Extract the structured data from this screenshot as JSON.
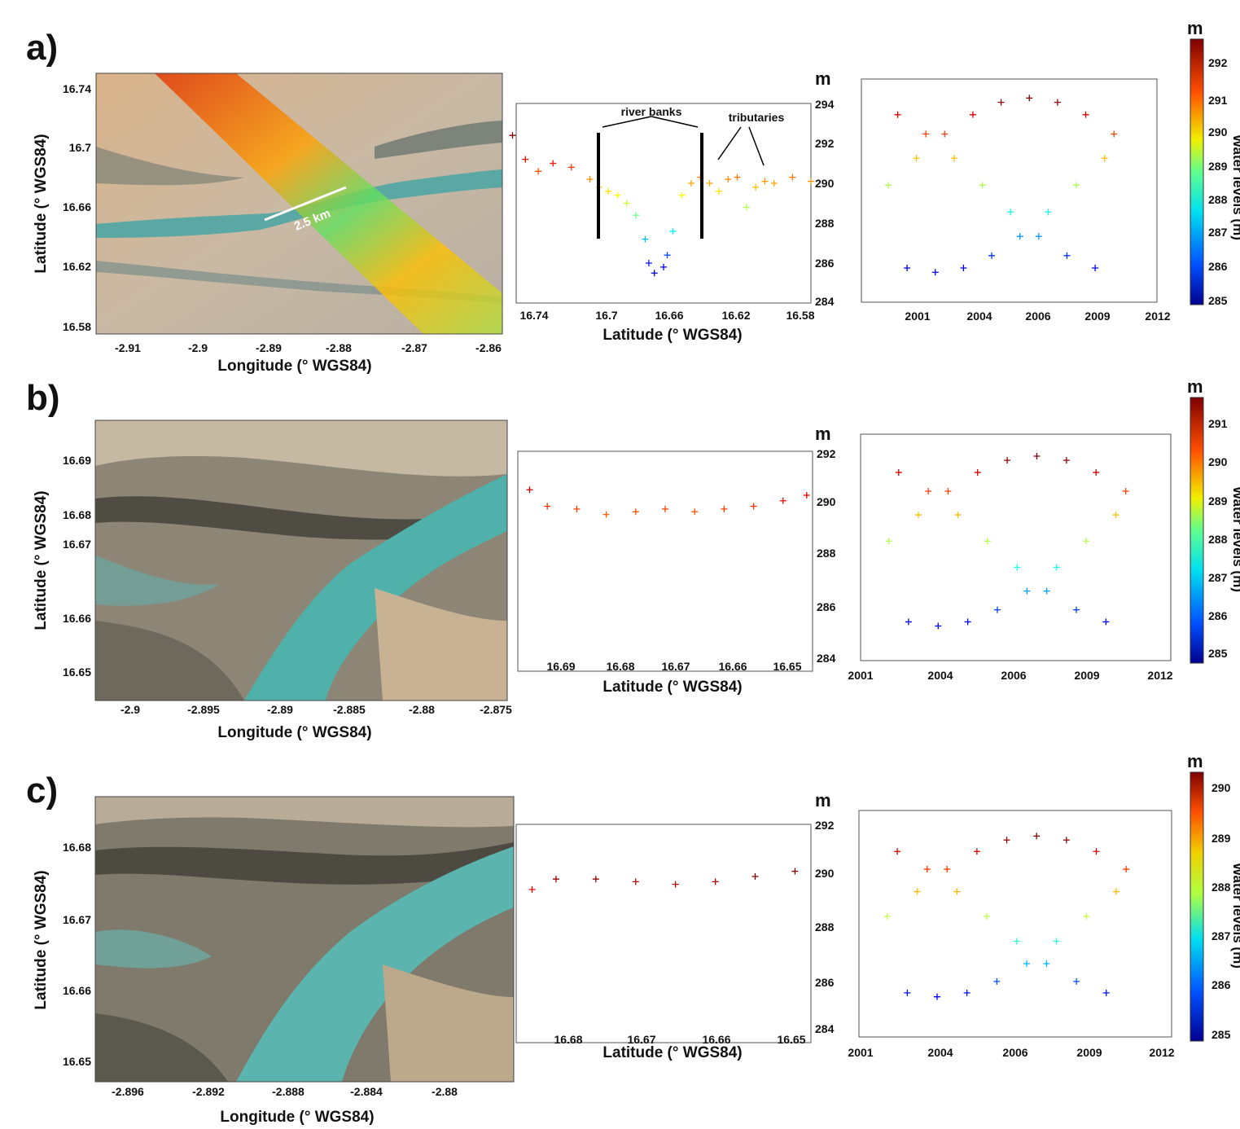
{
  "panels": [
    {
      "id": "a",
      "letter": "a)",
      "map": {
        "ylabel": "Latitude (° WGS84)",
        "xlabel": "Longitude (° WGS84)",
        "yticks": [
          "16.74",
          "16.7",
          "16.66",
          "16.62",
          "16.58"
        ],
        "xticks": [
          "-2.91",
          "-2.9",
          "-2.89",
          "-2.88",
          "-2.87",
          "-2.86"
        ],
        "scalebar": "2.5 km"
      },
      "profile": {
        "unit": "m",
        "xlabel": "Latitude (° WGS84)",
        "xticks": [
          "16.74",
          "16.7",
          "16.66",
          "16.62",
          "16.58"
        ],
        "yticks": [
          "294",
          "292",
          "290",
          "288",
          "286",
          "284"
        ],
        "annot_banks": "river banks",
        "annot_trib": "tributaries"
      },
      "series": {
        "xticks": [
          "2001",
          "2004",
          "2006",
          "2009",
          "2012"
        ]
      },
      "colorbar": {
        "unit": "m",
        "ticks": [
          "292",
          "291",
          "290",
          "289",
          "288",
          "287",
          "286",
          "285"
        ],
        "label": "Water levels (m)"
      }
    },
    {
      "id": "b",
      "letter": "b)",
      "map": {
        "ylabel": "Latitude (° WGS84)",
        "xlabel": "Longitude (° WGS84)",
        "yticks": [
          "16.69",
          "16.68",
          "16.67",
          "16.66",
          "16.65"
        ],
        "xticks": [
          "-2.9",
          "-2.895",
          "-2.89",
          "-2.885",
          "-2.88",
          "-2.875"
        ]
      },
      "profile": {
        "unit": "m",
        "xlabel": "Latitude (° WGS84)",
        "xticks": [
          "16.69",
          "16.68",
          "16.67",
          "16.66",
          "16.65"
        ],
        "yticks": [
          "292",
          "290",
          "288",
          "286",
          "284"
        ]
      },
      "series": {
        "xticks": [
          "2001",
          "2004",
          "2006",
          "2009",
          "2012"
        ]
      },
      "colorbar": {
        "unit": "m",
        "ticks": [
          "291",
          "290",
          "289",
          "288",
          "287",
          "286",
          "285"
        ],
        "label": "Water levels (m)"
      }
    },
    {
      "id": "c",
      "letter": "c)",
      "map": {
        "ylabel": "Latitude (° WGS84)",
        "xlabel": "Longitude (° WGS84)",
        "yticks": [
          "16.68",
          "16.67",
          "16.66",
          "16.65"
        ],
        "xticks": [
          "-2.896",
          "-2.892",
          "-2.888",
          "-2.884",
          "-2.88"
        ]
      },
      "profile": {
        "unit": "m",
        "xlabel": "Latitude (° WGS84)",
        "xticks": [
          "16.68",
          "16.67",
          "16.66",
          "16.65"
        ],
        "yticks": [
          "292",
          "290",
          "288",
          "286",
          "284"
        ]
      },
      "series": {
        "xticks": [
          "2001",
          "2004",
          "2006",
          "2009",
          "2012"
        ]
      },
      "colorbar": {
        "unit": "m",
        "ticks": [
          "290",
          "289",
          "288",
          "287",
          "286",
          "285"
        ],
        "label": "Water levels (m)"
      }
    }
  ],
  "chart_data": [
    {
      "type": "scatter",
      "panel": "a",
      "title": "",
      "xlabel": "Latitude (° WGS84)",
      "ylabel": "m",
      "xlim": [
        16.74,
        16.58
      ],
      "ylim": [
        284,
        294
      ],
      "grid": false,
      "profile_points": [
        [
          16.742,
          292.4
        ],
        [
          16.735,
          291.2
        ],
        [
          16.728,
          290.6
        ],
        [
          16.72,
          291.0
        ],
        [
          16.71,
          290.8
        ],
        [
          16.7,
          290.2
        ],
        [
          16.695,
          289.8
        ],
        [
          16.69,
          289.6
        ],
        [
          16.685,
          289.4
        ],
        [
          16.68,
          289.0
        ],
        [
          16.675,
          288.4
        ],
        [
          16.67,
          287.2
        ],
        [
          16.668,
          286.0
        ],
        [
          16.665,
          285.5
        ],
        [
          16.66,
          285.8
        ],
        [
          16.658,
          286.4
        ],
        [
          16.655,
          287.6
        ],
        [
          16.65,
          289.4
        ],
        [
          16.645,
          290.0
        ],
        [
          16.64,
          290.3
        ],
        [
          16.635,
          290.0
        ],
        [
          16.63,
          289.6
        ],
        [
          16.625,
          290.2
        ],
        [
          16.62,
          290.3
        ],
        [
          16.615,
          288.8
        ],
        [
          16.61,
          289.8
        ],
        [
          16.605,
          290.1
        ],
        [
          16.6,
          290.0
        ],
        [
          16.59,
          290.3
        ],
        [
          16.58,
          290.1
        ]
      ],
      "series_years": [
        2001,
        2004,
        2006,
        2009,
        2012
      ],
      "water_level_range_m": [
        285,
        292
      ]
    },
    {
      "type": "scatter",
      "panel": "b",
      "title": "",
      "xlabel": "Latitude (° WGS84)",
      "ylabel": "m",
      "xlim": [
        16.695,
        16.645
      ],
      "ylim": [
        284,
        292
      ],
      "grid": false,
      "profile_points": [
        [
          16.693,
          290.6
        ],
        [
          16.69,
          290.0
        ],
        [
          16.685,
          289.9
        ],
        [
          16.68,
          289.7
        ],
        [
          16.675,
          289.8
        ],
        [
          16.67,
          289.9
        ],
        [
          16.665,
          289.8
        ],
        [
          16.66,
          289.9
        ],
        [
          16.655,
          290.0
        ],
        [
          16.65,
          290.2
        ],
        [
          16.646,
          290.4
        ]
      ],
      "series_years": [
        2001,
        2004,
        2006,
        2009,
        2012
      ],
      "water_level_range_m": [
        285,
        291
      ]
    },
    {
      "type": "scatter",
      "panel": "c",
      "title": "",
      "xlabel": "Latitude (° WGS84)",
      "ylabel": "m",
      "xlim": [
        16.685,
        16.648
      ],
      "ylim": [
        284,
        292
      ],
      "grid": false,
      "profile_points": [
        [
          16.683,
          289.5
        ],
        [
          16.68,
          289.9
        ],
        [
          16.675,
          289.9
        ],
        [
          16.67,
          289.8
        ],
        [
          16.665,
          289.7
        ],
        [
          16.66,
          289.8
        ],
        [
          16.655,
          290.0
        ],
        [
          16.65,
          290.2
        ]
      ],
      "series_years": [
        2001,
        2004,
        2006,
        2009,
        2012
      ],
      "water_level_range_m": [
        285,
        290
      ]
    }
  ]
}
